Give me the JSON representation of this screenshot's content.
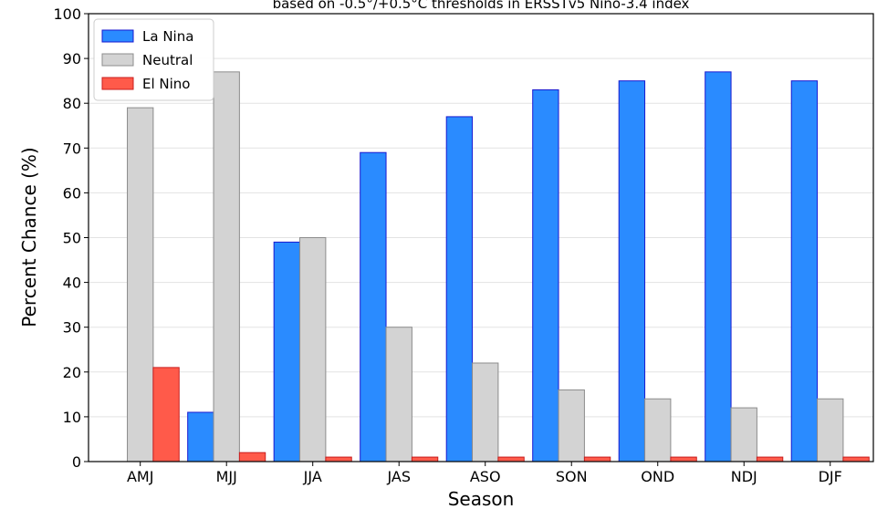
{
  "chart_data": {
    "type": "bar",
    "title": "based on -0.5°/+0.5°C thresholds in ERSSTv5 Nino-3.4 index",
    "xlabel": "Season",
    "ylabel": "Percent Chance (%)",
    "ylim": [
      0,
      100
    ],
    "yticks": [
      "0",
      "10",
      "20",
      "30",
      "40",
      "50",
      "60",
      "70",
      "80",
      "90",
      "100"
    ],
    "grid": true,
    "legend_position": "top-left",
    "categories": [
      "AMJ",
      "MJJ",
      "JJA",
      "JAS",
      "ASO",
      "SON",
      "OND",
      "NDJ",
      "DJF"
    ],
    "series": [
      {
        "name": "La Nina",
        "color": "#2a8bff",
        "edge": "#1a1ad0",
        "values": [
          0,
          11,
          49,
          69,
          77,
          83,
          85,
          87,
          85
        ]
      },
      {
        "name": "Neutral",
        "color": "#d3d3d3",
        "edge": "#8c8c8c",
        "values": [
          79,
          87,
          50,
          30,
          22,
          16,
          14,
          12,
          14
        ]
      },
      {
        "name": "El Nino",
        "color": "#ff5a4a",
        "edge": "#c81e1e",
        "values": [
          21,
          2,
          1,
          1,
          1,
          1,
          1,
          1,
          1
        ]
      }
    ]
  }
}
